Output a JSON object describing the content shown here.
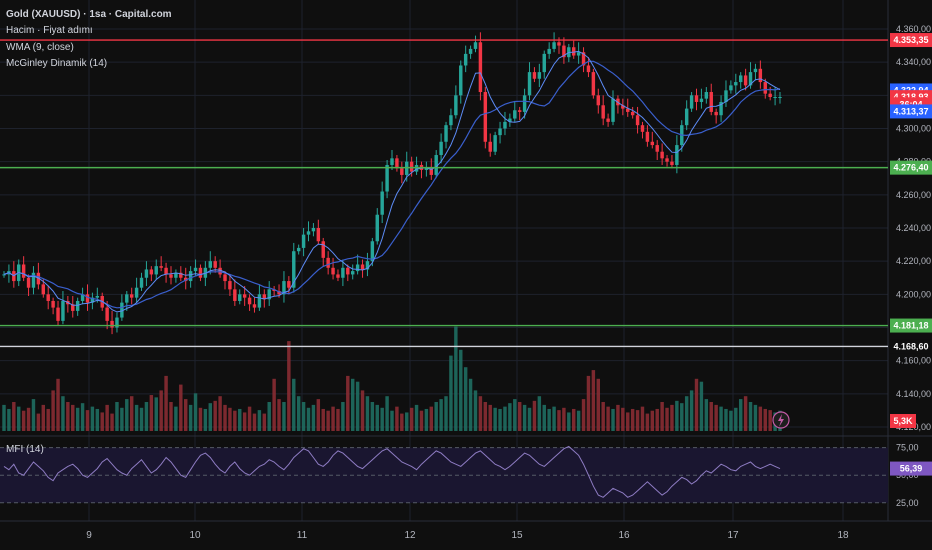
{
  "header": {
    "symbol": "Gold (XAUUSD) · 1sa · Capital.com",
    "volume_label": "Hacim · Fiyat adımı",
    "wma_label": "WMA (9, close)",
    "mcginley_label": "McGinley Dinamik (14)"
  },
  "mfi": {
    "label": "MFI (14)",
    "value": "56,39",
    "ticks": [
      "75,00",
      "50,00",
      "25,00"
    ]
  },
  "price_axis": {
    "ticks": [
      "4.360,00",
      "4.340,00",
      "4.320,00",
      "4.300,00",
      "4.280,00",
      "4.260,00",
      "4.240,00",
      "4.220,00",
      "4.200,00",
      "4.180,00",
      "4.160,00",
      "4.140,00",
      "4.120,00"
    ]
  },
  "time_axis": {
    "labels": [
      "9",
      "10",
      "11",
      "12",
      "15",
      "16",
      "17",
      "18"
    ]
  },
  "levels": [
    {
      "price": 4353.35,
      "label": "4.353,35",
      "color": "#f23645",
      "line": "#f23645"
    },
    {
      "price": 4276.4,
      "label": "4.276,40",
      "color": "#4caf50",
      "line": "#4caf50"
    },
    {
      "price": 4181.18,
      "label": "4.181,18",
      "color": "#4caf50",
      "line": "#4caf50"
    },
    {
      "price": 4168.6,
      "label": "4.168,60",
      "color": "#0f0f0f",
      "line": "#d1d4dc"
    }
  ],
  "badges": [
    {
      "label": "4.322,94",
      "color": "#2962ff",
      "price": 4322.94
    },
    {
      "label": "4.318,93",
      "color": "#f23645",
      "price": 4318.93
    },
    {
      "label": "36:04",
      "color": "#f23645",
      "price": 4314.6
    },
    {
      "label": "4.313,37",
      "color": "#2962ff",
      "price": 4310.3
    }
  ],
  "volume_badge": {
    "label": "5,3K",
    "color": "#f23645"
  },
  "colors": {
    "up": "#26a69a",
    "down": "#f23645",
    "wma": "#5d8cf7",
    "mcginley": "#3a5fcd",
    "mfi_line": "#8e7cc3",
    "mfi_badge": "#7e57c2",
    "grid": "#1e222d"
  },
  "chart_data": {
    "type": "candlestick",
    "x_labels": [
      "9",
      "10",
      "11",
      "12",
      "15",
      "16",
      "17",
      "18"
    ],
    "ohlc_start": 4212,
    "closes": [
      4212,
      4214,
      4208,
      4218,
      4210,
      4204,
      4213,
      4206,
      4200,
      4196,
      4192,
      4184,
      4196,
      4194,
      4190,
      4196,
      4200,
      4195,
      4198,
      4199,
      4192,
      4184,
      4180,
      4186,
      4195,
      4200,
      4198,
      4204,
      4210,
      4215,
      4212,
      4217,
      4216,
      4212,
      4210,
      4213,
      4210,
      4208,
      4214,
      4216,
      4210,
      4216,
      4220,
      4216,
      4212,
      4208,
      4203,
      4196,
      4200,
      4198,
      4194,
      4192,
      4200,
      4197,
      4203,
      4202,
      4200,
      4208,
      4204,
      4226,
      4228,
      4236,
      4238,
      4240,
      4232,
      4222,
      4216,
      4212,
      4210,
      4216,
      4212,
      4214,
      4218,
      4215,
      4220,
      4232,
      4248,
      4262,
      4278,
      4282,
      4276,
      4272,
      4280,
      4274,
      4278,
      4275,
      4276,
      4272,
      4284,
      4292,
      4302,
      4308,
      4320,
      4338,
      4345,
      4348,
      4352,
      4322,
      4292,
      4286,
      4296,
      4300,
      4304,
      4306,
      4311,
      4310,
      4320,
      4334,
      4330,
      4334,
      4345,
      4348,
      4352,
      4350,
      4343,
      4349,
      4344,
      4346,
      4338,
      4334,
      4320,
      4314,
      4306,
      4304,
      4318,
      4314,
      4312,
      4310,
      4308,
      4302,
      4298,
      4292,
      4290,
      4286,
      4282,
      4280,
      4278,
      4290,
      4302,
      4312,
      4320,
      4316,
      4318,
      4322,
      4310,
      4308,
      4316,
      4323,
      4326,
      4328,
      4332,
      4326,
      4334,
      4336,
      4328,
      4321,
      4319,
      4319,
      4319
    ],
    "volumes": [
      0.45,
      0.38,
      0.5,
      0.42,
      0.35,
      0.4,
      0.55,
      0.3,
      0.45,
      0.38,
      0.7,
      0.9,
      0.6,
      0.5,
      0.45,
      0.4,
      0.48,
      0.36,
      0.42,
      0.38,
      0.32,
      0.45,
      0.3,
      0.5,
      0.4,
      0.55,
      0.6,
      0.45,
      0.4,
      0.5,
      0.62,
      0.58,
      0.7,
      0.95,
      0.5,
      0.42,
      0.8,
      0.55,
      0.45,
      0.65,
      0.4,
      0.38,
      0.48,
      0.52,
      0.6,
      0.45,
      0.4,
      0.35,
      0.38,
      0.32,
      0.42,
      0.3,
      0.36,
      0.3,
      0.5,
      0.9,
      0.55,
      0.5,
      1.55,
      0.9,
      0.6,
      0.5,
      0.4,
      0.45,
      0.55,
      0.38,
      0.35,
      0.42,
      0.38,
      0.5,
      0.95,
      0.9,
      0.85,
      0.7,
      0.6,
      0.5,
      0.45,
      0.4,
      0.6,
      0.35,
      0.42,
      0.3,
      0.32,
      0.4,
      0.45,
      0.35,
      0.38,
      0.42,
      0.5,
      0.55,
      0.6,
      1.3,
      1.8,
      1.4,
      1.1,
      0.9,
      0.7,
      0.6,
      0.5,
      0.45,
      0.4,
      0.38,
      0.42,
      0.48,
      0.55,
      0.5,
      0.45,
      0.4,
      0.52,
      0.6,
      0.45,
      0.38,
      0.42,
      0.36,
      0.4,
      0.32,
      0.38,
      0.35,
      0.55,
      0.95,
      1.05,
      0.9,
      0.5,
      0.42,
      0.38,
      0.45,
      0.4,
      0.32,
      0.38,
      0.36,
      0.42,
      0.3,
      0.35,
      0.38,
      0.5,
      0.4,
      0.45,
      0.52,
      0.48,
      0.6,
      0.7,
      0.9,
      0.85,
      0.55,
      0.5,
      0.45,
      0.42,
      0.38,
      0.35,
      0.4,
      0.55,
      0.6,
      0.5,
      0.45,
      0.42,
      0.38,
      0.36,
      0.32,
      0.35
    ],
    "mfi": [
      58,
      55,
      60,
      52,
      50,
      56,
      62,
      58,
      54,
      48,
      45,
      52,
      55,
      58,
      60,
      56,
      50,
      48,
      52,
      56,
      62,
      65,
      60,
      55,
      52,
      50,
      56,
      60,
      64,
      58,
      52,
      55,
      60,
      66,
      62,
      56,
      50,
      48,
      55,
      62,
      68,
      70,
      66,
      60,
      55,
      52,
      58,
      62,
      56,
      52,
      50,
      54,
      58,
      60,
      64,
      62,
      58,
      55,
      60,
      66,
      70,
      74,
      72,
      66,
      60,
      58,
      62,
      68,
      72,
      70,
      66,
      62,
      58,
      56,
      60,
      64,
      68,
      72,
      74,
      70,
      66,
      62,
      60,
      58,
      55,
      60,
      64,
      68,
      72,
      70,
      66,
      62,
      60,
      58,
      62,
      66,
      70,
      72,
      68,
      64,
      60,
      58,
      55,
      58,
      62,
      66,
      70,
      68,
      64,
      60,
      58,
      62,
      66,
      70,
      74,
      76,
      72,
      68,
      60,
      50,
      40,
      32,
      30,
      34,
      38,
      36,
      34,
      30,
      32,
      36,
      40,
      44,
      40,
      36,
      32,
      35,
      40,
      44,
      48,
      46,
      42,
      45,
      50,
      54,
      52,
      56,
      60,
      58,
      55,
      54,
      58,
      60,
      62,
      58,
      56,
      58,
      60,
      58,
      56
    ]
  }
}
